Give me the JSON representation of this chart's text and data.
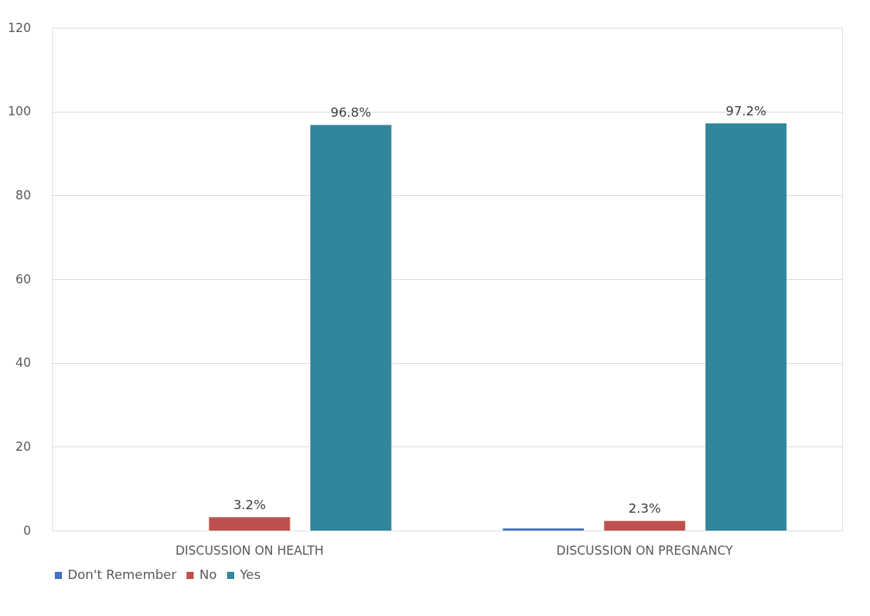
{
  "chart_data": {
    "type": "bar",
    "categories": [
      "DISCUSSION ON HEALTH",
      "DISCUSSION ON PREGNANCY"
    ],
    "series": [
      {
        "name": "Don't Remember",
        "color": "#4472c4",
        "values": [
          0,
          0.5
        ],
        "value_labels": [
          null,
          null
        ]
      },
      {
        "name": "No",
        "color": "#c0504d",
        "values": [
          3.2,
          2.3
        ],
        "value_labels": [
          "3.2%",
          "2.3%"
        ]
      },
      {
        "name": "Yes",
        "color": "#31859c",
        "values": [
          96.8,
          97.2
        ],
        "value_labels": [
          "96.8%",
          "97.2%"
        ]
      }
    ],
    "ylim": [
      0,
      120
    ],
    "yticks": [
      0,
      20,
      40,
      60,
      80,
      100,
      120
    ],
    "grid": "y",
    "legend": "bottom"
  }
}
